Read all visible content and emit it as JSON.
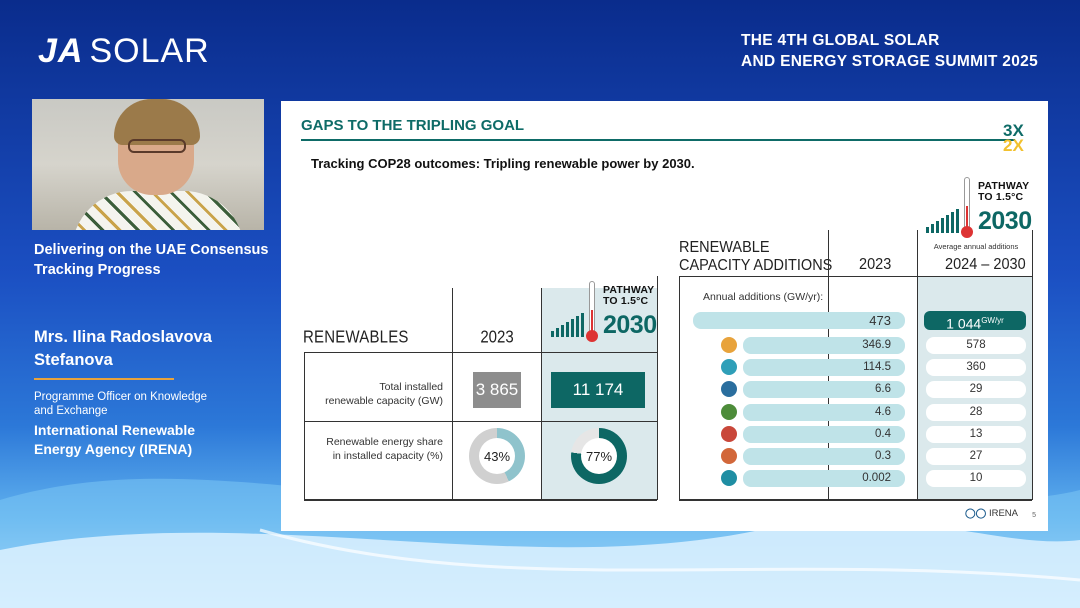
{
  "brand": {
    "bold": "JA",
    "rest": "SOLAR"
  },
  "summit": {
    "line1": "THE 4TH GLOBAL SOLAR",
    "line2": "AND ENERGY STORAGE SUMMIT 2025"
  },
  "left_panel": {
    "title_line1": "Delivering on the UAE Consensus",
    "title_line2": "Tracking Progress",
    "speaker_line1": "Mrs. Ilina Radoslavova",
    "speaker_line2": "Stefanova",
    "role_line1": "Programme Officer on Knowledge",
    "role_line2": "and Exchange",
    "org_line1": "International Renewable",
    "org_line2": "Energy Agency (IRENA)"
  },
  "slide": {
    "title": "GAPS TO THE TRIPLING GOAL",
    "logo_top": "3X",
    "logo_bottom": "2X",
    "subtitle": "Tracking COP28 outcomes: Tripling renewable power by 2030.",
    "pathway_line1": "PATHWAY",
    "pathway_line2": "TO 1.5°C",
    "pathway_year": "2030",
    "left_table": {
      "header_label": "RENEWABLES",
      "header_2023": "2023",
      "row1_label_line1": "Total installed",
      "row1_label_line2": "renewable capacity (GW)",
      "row1_2023": "3 865",
      "row1_2030": "11 174",
      "row2_label_line1": "Renewable energy share",
      "row2_label_line2": "in installed capacity (%)",
      "row2_2023_value": 43,
      "row2_2023_label": "43%",
      "row2_2030_value": 77,
      "row2_2030_label": "77%"
    },
    "right_table": {
      "header_line1": "RENEWABLE",
      "header_line2": "CAPACITY ADDITIONS",
      "header_2023": "2023",
      "header_range": "2024 – 2030",
      "avg_label": "Average annual additions",
      "annual_label": "Annual additions (GW/yr):",
      "total_2023": "473",
      "total_2030": "1 044",
      "total_unit": "GW/yr",
      "rows": [
        {
          "icon": "solar-icon",
          "v2023": "346.9",
          "v2030": "578"
        },
        {
          "icon": "wind-icon",
          "v2023": "114.5",
          "v2030": "360"
        },
        {
          "icon": "hydro-icon",
          "v2023": "6.6",
          "v2030": "29"
        },
        {
          "icon": "bioenergy-icon",
          "v2023": "4.6",
          "v2030": "28"
        },
        {
          "icon": "geothermal-icon",
          "v2023": "0.4",
          "v2030": "13"
        },
        {
          "icon": "csp-icon",
          "v2023": "0.3",
          "v2030": "27"
        },
        {
          "icon": "marine-icon",
          "v2023": "0.002",
          "v2030": "10"
        }
      ]
    },
    "footer_logo": "IRENA",
    "page_number": "5"
  },
  "colors": {
    "teal": "#0d6764",
    "light_teal": "#bfe3e8",
    "grey": "#8d8d8d",
    "accent_orange": "#e8a33c",
    "background_blue": "#1b4fc2"
  }
}
